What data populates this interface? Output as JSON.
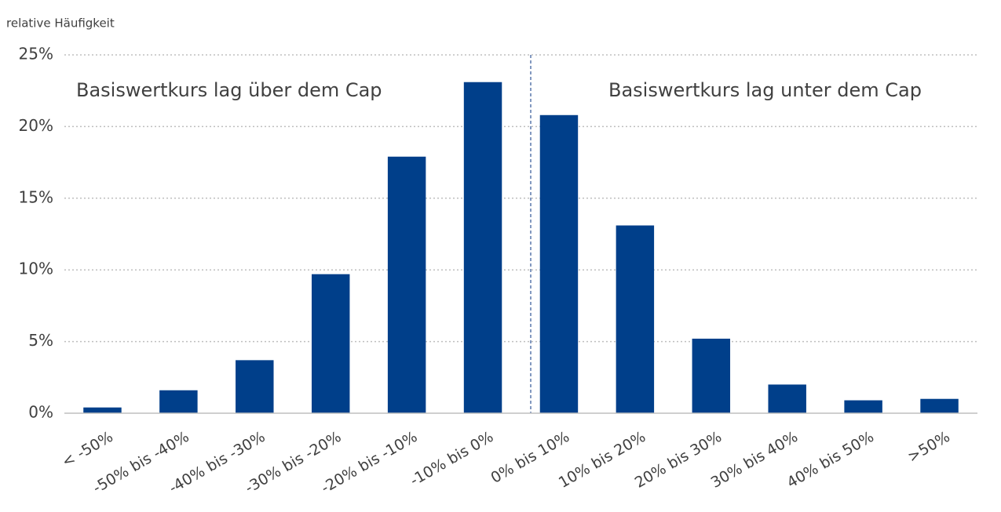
{
  "chart_data": {
    "type": "bar",
    "y_axis_label": "relative Häufigkeit",
    "annotations": [
      "Basiswertkurs  lag über dem Cap",
      "Basiswertkurs  lag unter dem Cap"
    ],
    "categories": [
      "< -50%",
      "-50%  bis -40%",
      "-40% bis -30%",
      "-30% bis -20%",
      "-20% bis -10%",
      "-10% bis 0%",
      "0% bis 10%",
      "10% bis 20%",
      "20% bis 30%",
      "30% bis 40%",
      "40% bis 50%",
      ">50%"
    ],
    "values": [
      0.4,
      1.6,
      3.7,
      9.7,
      17.9,
      23.1,
      20.8,
      13.1,
      5.2,
      2.0,
      0.9,
      1.0
    ],
    "color": "#003f8a",
    "ylim": [
      0,
      25
    ],
    "yticks": [
      {
        "value": 0,
        "label": "0%"
      },
      {
        "value": 5,
        "label": "5%"
      },
      {
        "value": 10,
        "label": "10%"
      },
      {
        "value": 15,
        "label": "15%"
      },
      {
        "value": 20,
        "label": "20%"
      },
      {
        "value": 25,
        "label": "25%"
      }
    ],
    "grid": true
  }
}
